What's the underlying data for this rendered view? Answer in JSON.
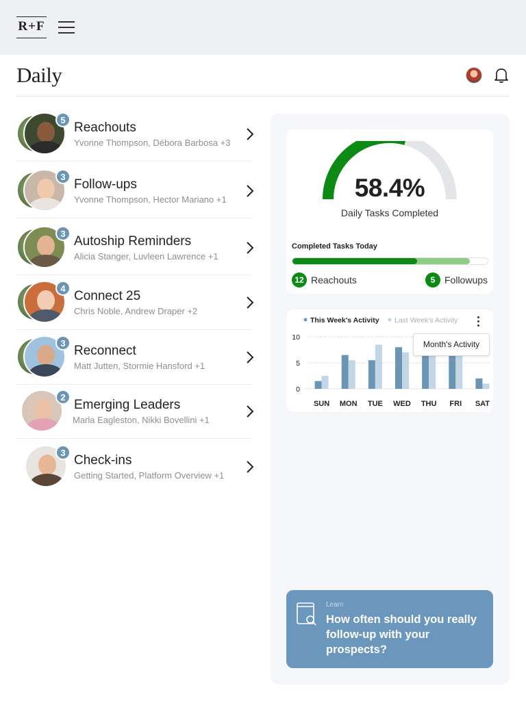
{
  "app": {
    "logo": "R+F"
  },
  "header": {
    "title": "Daily"
  },
  "tasks": [
    {
      "name": "Reachouts",
      "people": "Yvonne Thompson, Débora Barbosa +3",
      "count": "5"
    },
    {
      "name": "Follow-ups",
      "people": "Yvonne Thompson, Hector Mariano +1",
      "count": "3"
    },
    {
      "name": "Autoship Reminders",
      "people": "Alicia Stanger, Luvleen Lawrence +1",
      "count": "3"
    },
    {
      "name": "Connect 25",
      "people": "Chris Noble, Andrew Draper +2",
      "count": "4"
    },
    {
      "name": "Reconnect",
      "people": "Matt Jutten, Stormie Hansford +1",
      "count": "3"
    },
    {
      "name": "Emerging Leaders",
      "people": "Marla Eagleston, Nikki Bovellini +1",
      "count": "2"
    },
    {
      "name": "Check-ins",
      "people": "Getting Started, Platform Overview +1",
      "count": "3"
    }
  ],
  "summary": {
    "percent_label": "58.4%",
    "percent_value": 58.4,
    "caption": "Daily Tasks Completed",
    "completed_label": "Completed Tasks Today",
    "reachouts_fraction": 0.64,
    "followups_fraction": 0.91,
    "reachouts_count": "12",
    "reachouts_label": "Reachouts",
    "followups_count": "5",
    "followups_label": "Followups"
  },
  "colors": {
    "accent_green": "#0d8a14",
    "light_green": "#8fcd84",
    "badge_blue": "#6b95b5",
    "learn_blue": "#6a97bb"
  },
  "activity": {
    "menu_option": "Month's Activity"
  },
  "chart_data": {
    "type": "bar",
    "categories": [
      "SUN",
      "MON",
      "TUE",
      "WED",
      "THU",
      "FRI",
      "SAT"
    ],
    "series": [
      {
        "name": "This Week's Activity",
        "color": "#6b95b5",
        "values": [
          1.5,
          6.5,
          5.5,
          8,
          7,
          6.5,
          2
        ]
      },
      {
        "name": "Last Week's Activity",
        "color": "#c3d6e6",
        "values": [
          2.5,
          5.5,
          8.5,
          7,
          6.5,
          6.5,
          1
        ]
      }
    ],
    "yticks": [
      "0",
      "5",
      "10"
    ],
    "ylim": [
      0,
      10
    ],
    "grid": true,
    "legend": "top-left"
  },
  "learn": {
    "tag": "Learn",
    "title": "How often should you really follow-up with your prospects?"
  }
}
